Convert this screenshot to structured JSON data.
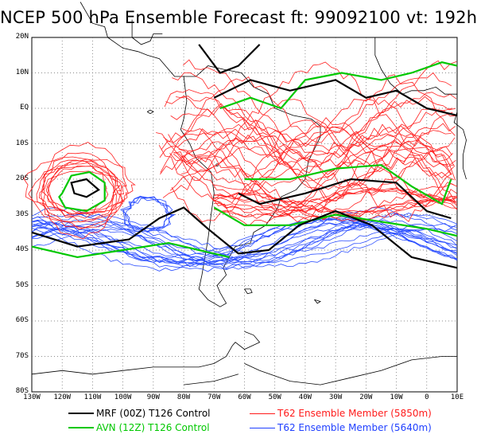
{
  "title": "NCEP 500 hPa Ensemble Forecast  ft: 99092100 vt: 192h",
  "map": {
    "lat_labels": [
      "20N",
      "10N",
      "EQ",
      "10S",
      "20S",
      "30S",
      "40S",
      "50S",
      "60S",
      "70S",
      "80S"
    ],
    "lon_labels": [
      "130W",
      "120W",
      "110W",
      "100W",
      "90W",
      "80W",
      "70W",
      "60W",
      "50W",
      "40W",
      "30W",
      "20W",
      "10W",
      "0",
      "10E"
    ]
  },
  "legend": [
    {
      "label": "MRF (00Z) T126 Control",
      "color": "#000000",
      "width": 2.5
    },
    {
      "label": "T62 Ensemble Member (5850m)",
      "color": "#ff1a1a",
      "width": 1
    },
    {
      "label": "AVN (12Z) T126 Control",
      "color": "#00c800",
      "width": 2.5
    },
    {
      "label": "T62 Ensemble Member (5640m)",
      "color": "#2040ff",
      "width": 1
    }
  ]
}
